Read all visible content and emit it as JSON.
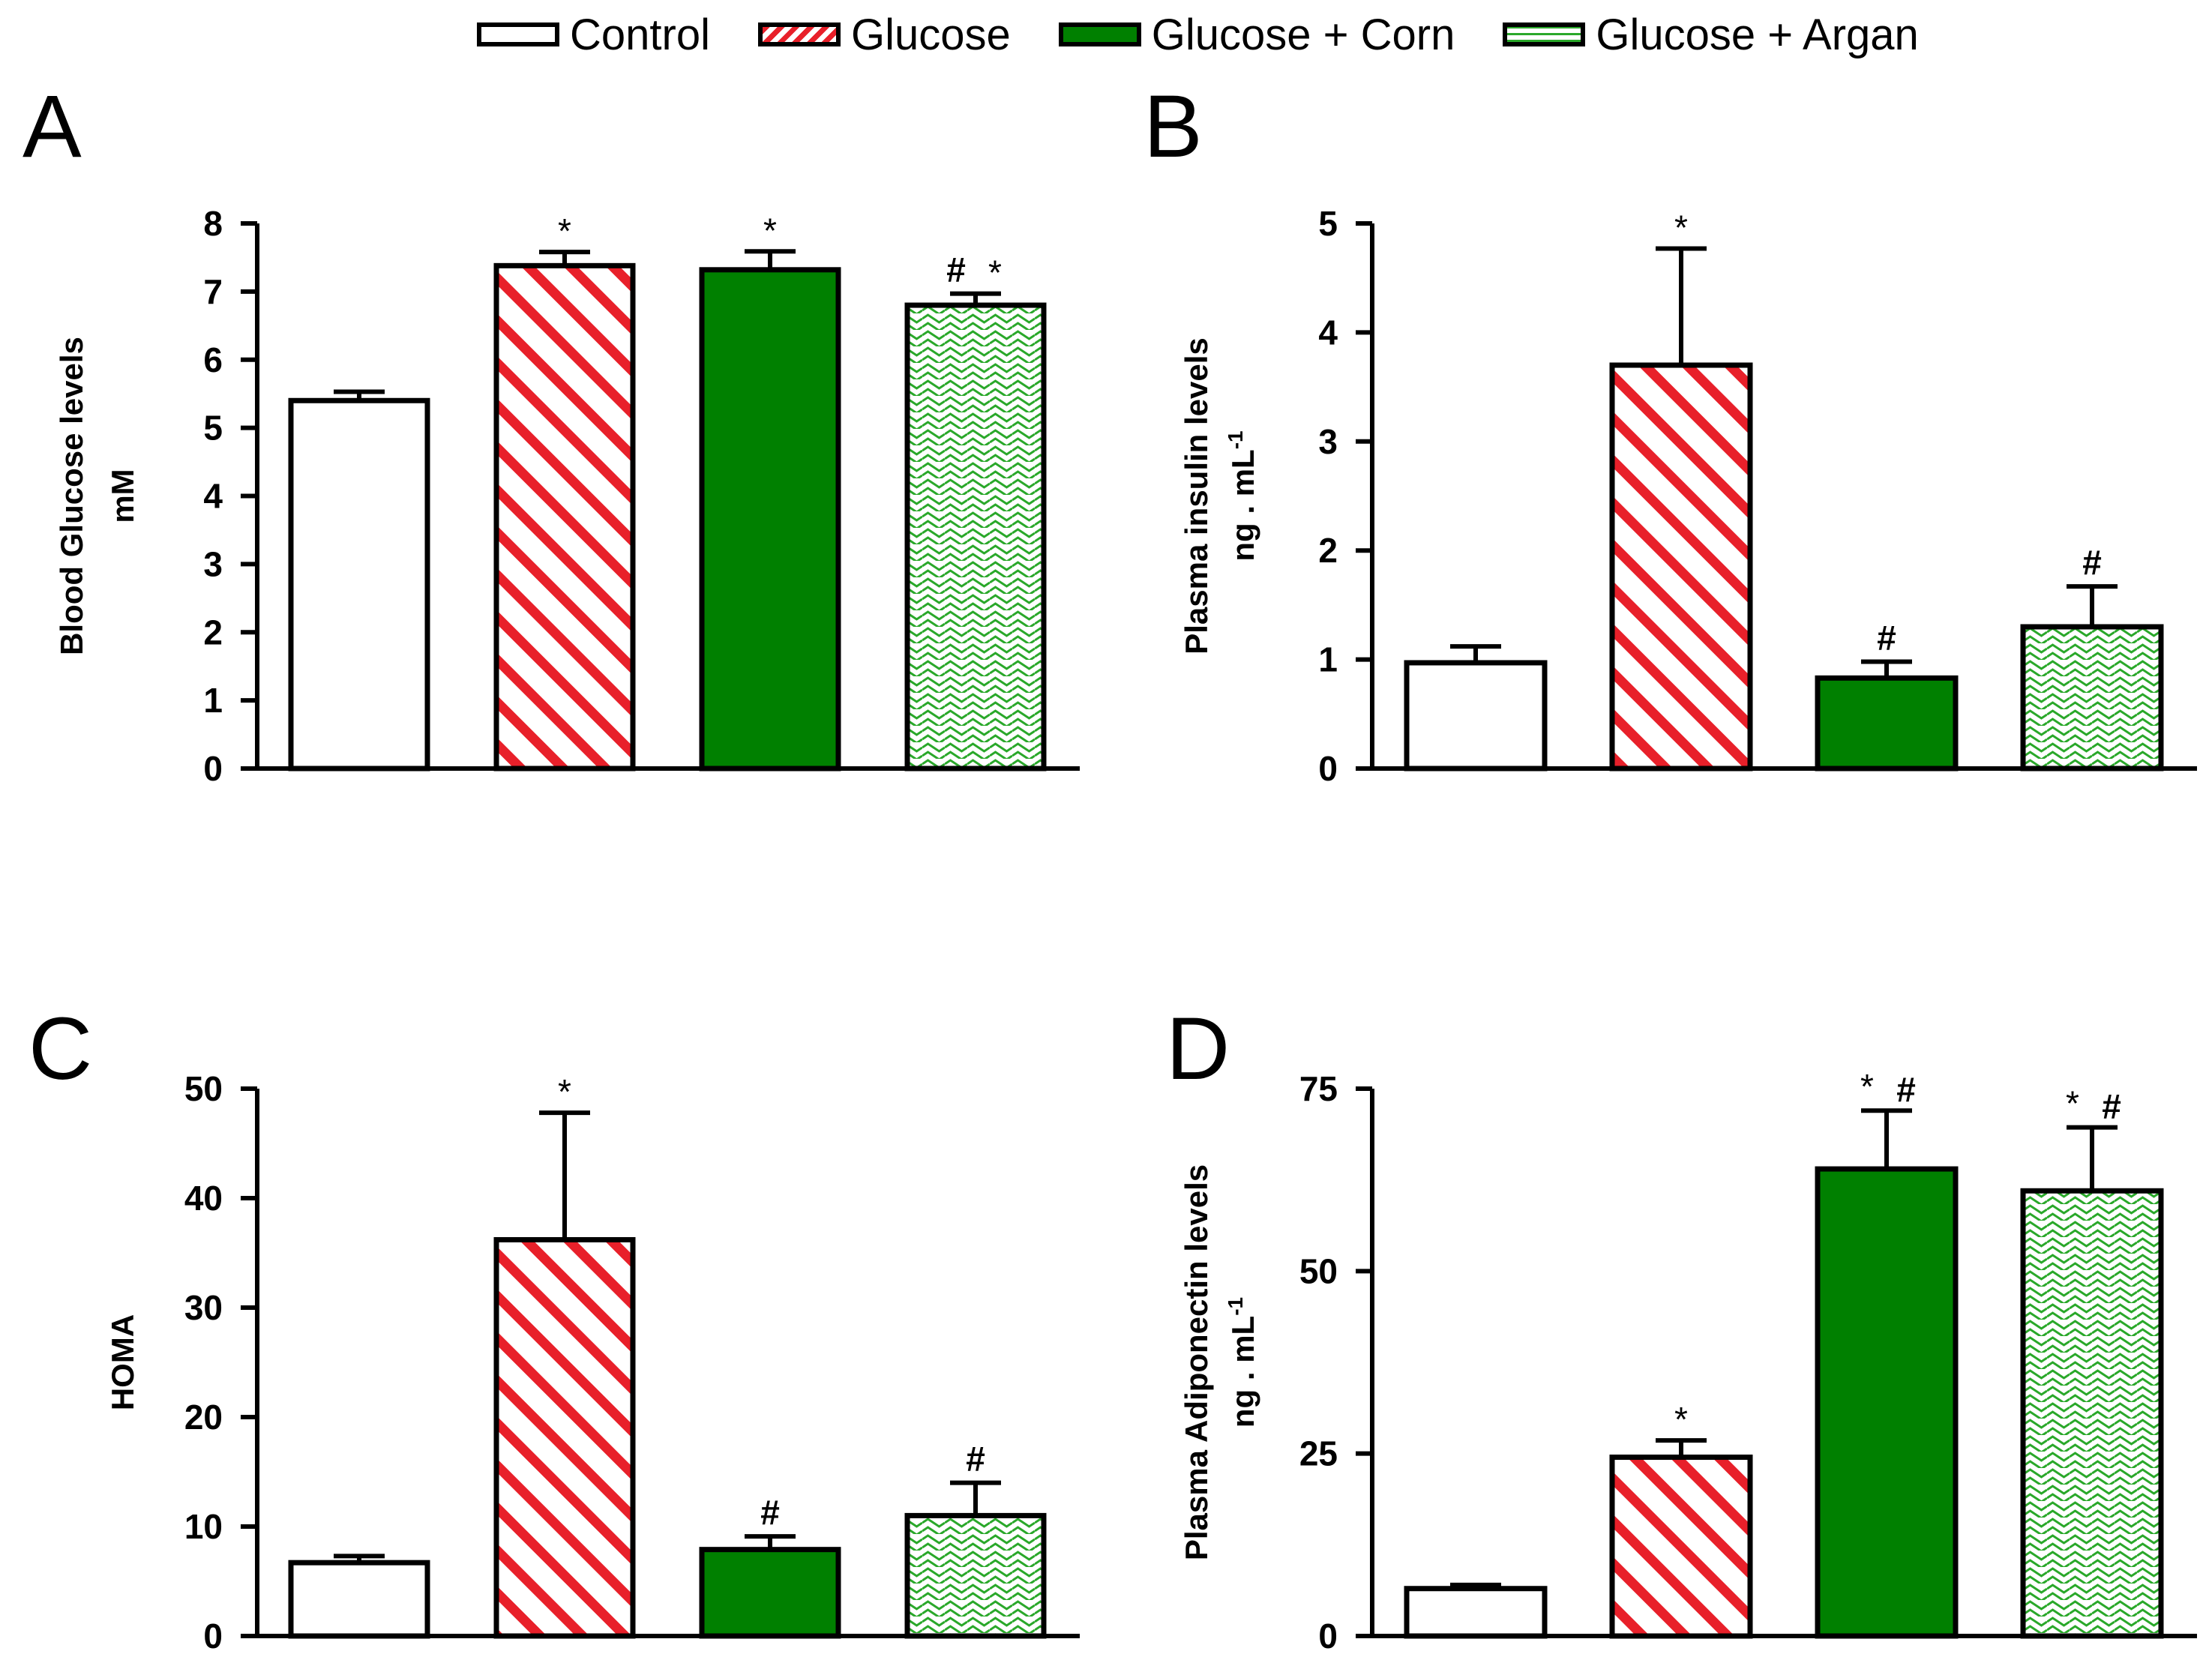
{
  "legend": {
    "items": [
      {
        "key": "control",
        "label": "Control"
      },
      {
        "key": "glucose",
        "label": "Glucose"
      },
      {
        "key": "corn",
        "label": "Glucose + Corn"
      },
      {
        "key": "argan",
        "label": "Glucose + Argan"
      }
    ]
  },
  "colors": {
    "black": "#000000",
    "white": "#ffffff",
    "red": "#e8202a",
    "green": "#008000",
    "green_light": "#2aa82a"
  },
  "chart_data": [
    {
      "panel": "A",
      "type": "bar",
      "categories": [
        "Control",
        "Glucose",
        "Glucose + Corn",
        "Glucose + Argan"
      ],
      "values": [
        5.4,
        7.38,
        7.32,
        6.8
      ],
      "errors": [
        0.13,
        0.2,
        0.27,
        0.17
      ],
      "significance": [
        "",
        "*",
        "*",
        "# *"
      ],
      "ylabel_lines": [
        "Blood Glucose levels",
        "mM"
      ],
      "yticks": [
        0,
        1,
        2,
        3,
        4,
        5,
        6,
        7,
        8
      ],
      "ylim": [
        0,
        8
      ]
    },
    {
      "panel": "B",
      "type": "bar",
      "categories": [
        "Control",
        "Glucose",
        "Glucose + Corn",
        "Glucose + Argan"
      ],
      "values": [
        0.97,
        3.7,
        0.83,
        1.3
      ],
      "errors": [
        0.15,
        1.07,
        0.15,
        0.37
      ],
      "significance": [
        "",
        "*",
        "#",
        "#"
      ],
      "ylabel_lines": [
        "Plasma insulin levels",
        "ng . mL-1"
      ],
      "yticks": [
        0,
        1,
        2,
        3,
        4,
        5
      ],
      "ylim": [
        0,
        5
      ]
    },
    {
      "panel": "C",
      "type": "bar",
      "categories": [
        "Control",
        "Glucose",
        "Glucose + Corn",
        "Glucose + Argan"
      ],
      "values": [
        6.7,
        36.2,
        7.9,
        11.0
      ],
      "errors": [
        0.6,
        11.6,
        1.2,
        3.0
      ],
      "significance": [
        "",
        "*",
        "#",
        "#"
      ],
      "ylabel_lines": [
        "HOMA"
      ],
      "yticks": [
        0,
        10,
        20,
        30,
        40,
        50
      ],
      "ylim": [
        0,
        50
      ]
    },
    {
      "panel": "D",
      "type": "bar",
      "categories": [
        "Control",
        "Glucose",
        "Glucose + Corn",
        "Glucose + Argan"
      ],
      "values": [
        6.5,
        24.5,
        64.0,
        61.0
      ],
      "errors": [
        0.5,
        2.3,
        8.0,
        8.7
      ],
      "significance": [
        "",
        "*",
        "* #",
        "* #"
      ],
      "ylabel_lines": [
        "Plasma Adiponectin levels",
        "ng . mL-1"
      ],
      "yticks": [
        0,
        25,
        50,
        75
      ],
      "ylim": [
        0,
        75
      ]
    }
  ]
}
